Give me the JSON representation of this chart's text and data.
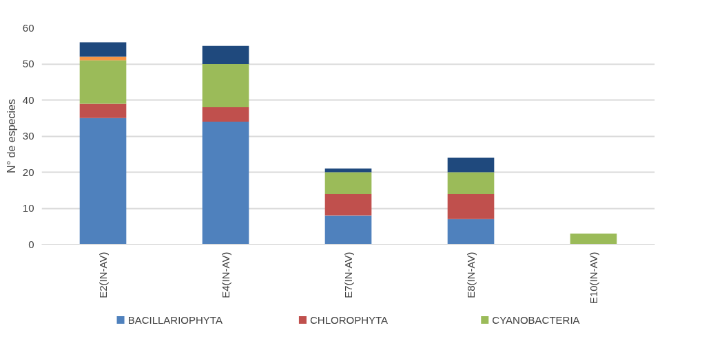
{
  "chart_data": {
    "type": "bar",
    "stacked": true,
    "ylabel": "N° de especies",
    "categories": [
      "E2(IN-AV)",
      "E4(IN-AV)",
      "E7(IN-AV)",
      "E8(IN-AV)",
      "E10(IN-AV)"
    ],
    "series": [
      {
        "name": "BACILLARIOPHYTA",
        "color": "#4f81bd",
        "values": [
          35,
          34,
          8,
          7,
          0
        ]
      },
      {
        "name": "CHLOROPHYTA",
        "color": "#c0504d",
        "values": [
          4,
          4,
          6,
          7,
          0
        ]
      },
      {
        "name": "CYANOBACTERIA",
        "color": "#9bbb59",
        "values": [
          12,
          12,
          6,
          6,
          3
        ]
      },
      {
        "color": "#f79646",
        "values": [
          1,
          0,
          0,
          0,
          0
        ]
      },
      {
        "color": "#1f497d",
        "values": [
          4,
          5,
          1,
          4,
          0
        ]
      }
    ],
    "ylim": [
      0,
      60
    ],
    "yticks": [
      0,
      10,
      20,
      30,
      40,
      50,
      60
    ],
    "grid": "y",
    "legend": "bottom"
  }
}
